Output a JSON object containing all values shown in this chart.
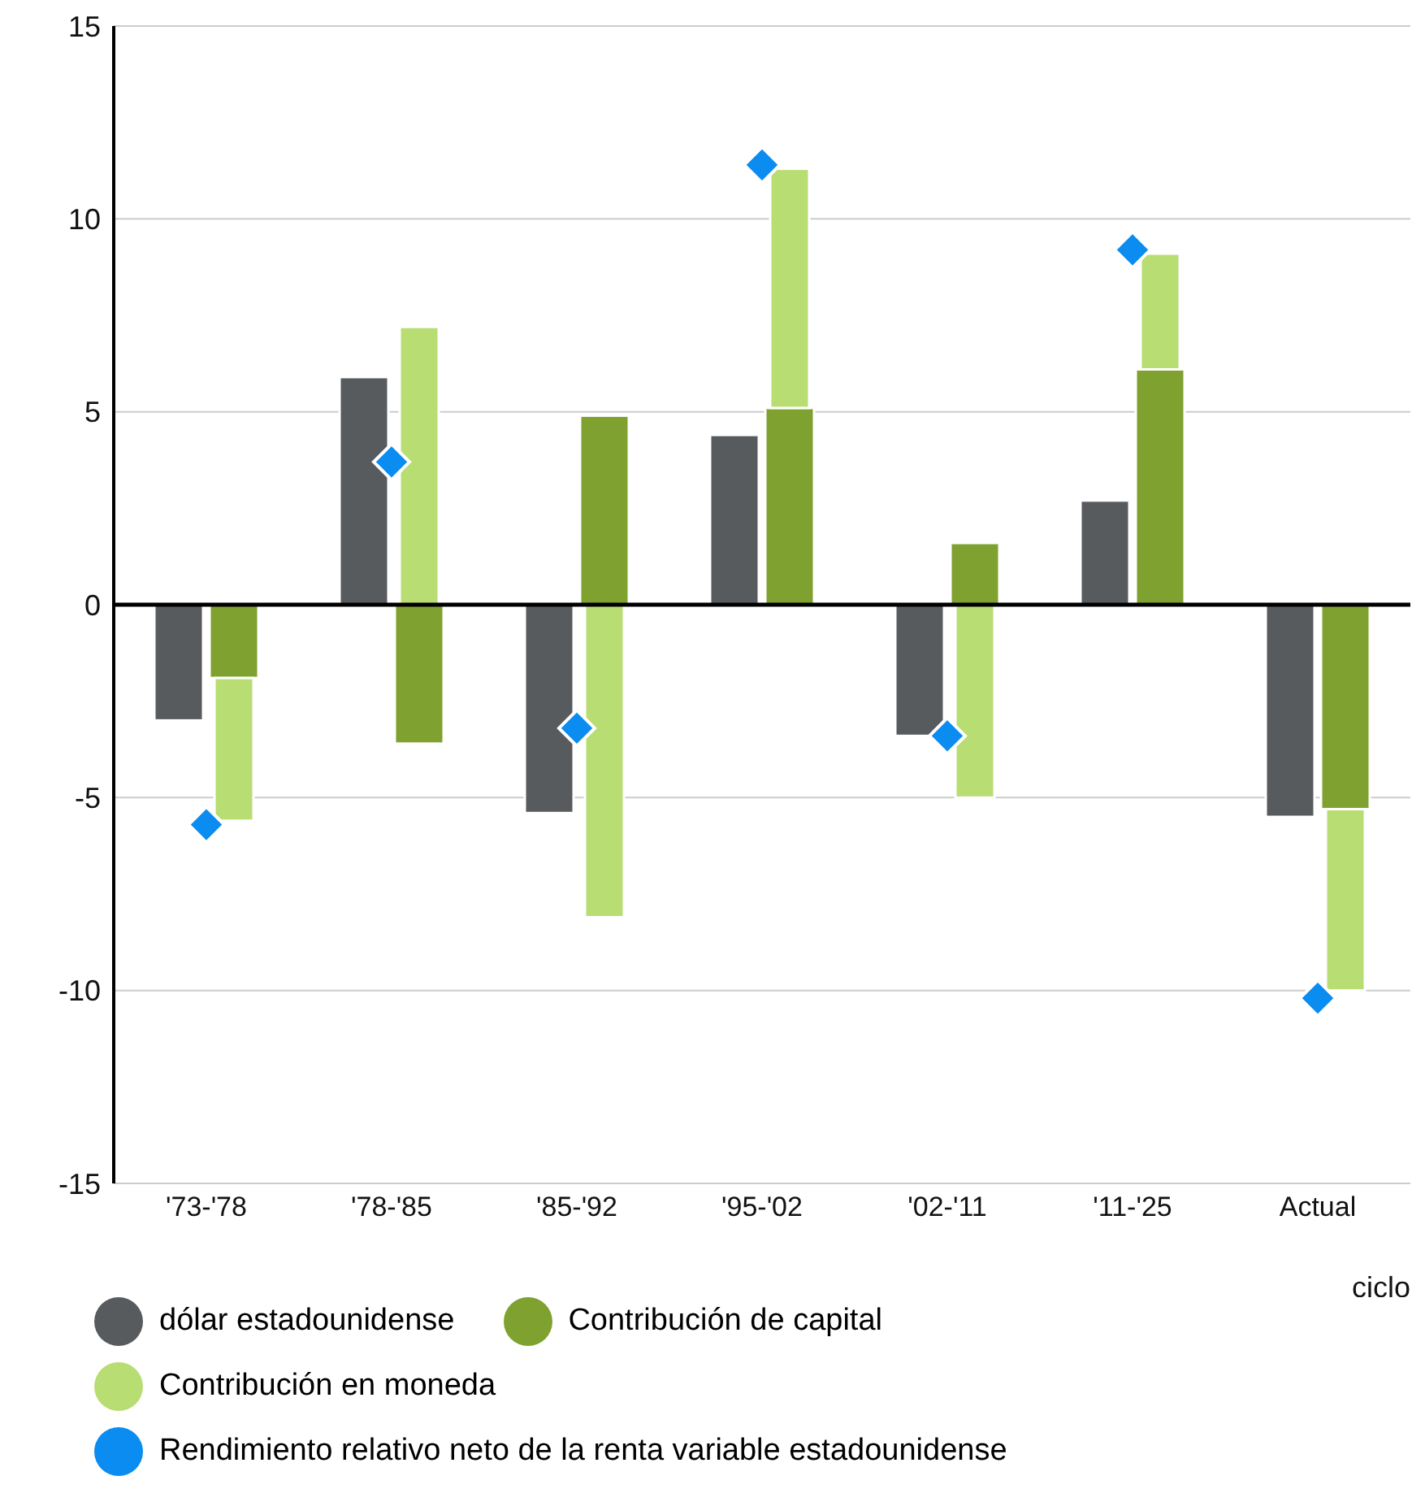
{
  "chart_data": {
    "type": "bar",
    "xlabel": "ciclo",
    "categories": [
      "'73-'78",
      "'78-'85",
      "'85-'92",
      "'95-'02",
      "'02-'11",
      "'11-'25",
      "Actual"
    ],
    "series": [
      {
        "name": "dólar estadounidense",
        "color": "#585b5e",
        "values": [
          -3.0,
          5.9,
          -5.4,
          4.4,
          -3.4,
          2.7,
          -5.5
        ]
      },
      {
        "name": "Contribución de capital",
        "color": "#7ea12f",
        "values": [
          -1.9,
          -3.6,
          4.9,
          5.1,
          1.6,
          6.1,
          -5.3
        ]
      },
      {
        "name": "Contribución en moneda",
        "color": "#b8dd72",
        "base": [
          -1.9,
          0,
          0,
          5.1,
          0,
          6.1,
          -5.3
        ],
        "values": [
          -3.7,
          7.2,
          -8.1,
          6.2,
          -5.0,
          3.0,
          -4.7
        ]
      },
      {
        "name": "Rendimiento relativo neto de la renta variable estadounidense",
        "type": "scatter",
        "marker": "diamond",
        "color": "#0a8cf0",
        "values": [
          -5.7,
          3.7,
          -3.2,
          11.4,
          -3.4,
          9.2,
          -10.2
        ]
      }
    ],
    "ylim": [
      -15,
      15
    ],
    "yticks": [
      -15,
      -10,
      -5,
      0,
      5,
      10,
      15
    ],
    "grid": "y",
    "legend": "bottom"
  }
}
